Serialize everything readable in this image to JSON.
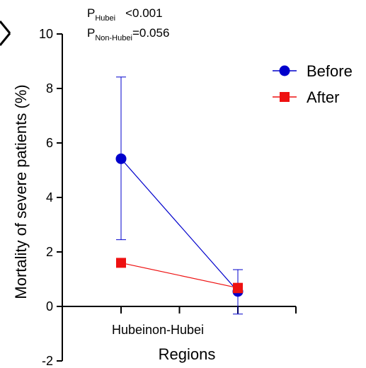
{
  "chart_data": {
    "type": "line",
    "categories": [
      "Hubei",
      "Non-Hubei"
    ],
    "category_labels_text": "Hubeinon-Hubei",
    "xlabel": "Regions",
    "ylabel": "Mortality of severe patients (%)",
    "ylim": [
      -2,
      10
    ],
    "yticks": [
      -2,
      0,
      2,
      4,
      6,
      8,
      10
    ],
    "ytick_labels": [
      "-2",
      "0",
      "2",
      "4",
      "6",
      "8",
      "10"
    ],
    "legend_position": "top-right",
    "grid": false,
    "series": [
      {
        "name": "Before",
        "color": "#0000cc",
        "marker": "circle",
        "values": [
          5.42,
          0.55
        ],
        "error_low": [
          2.45,
          -0.28
        ],
        "error_high": [
          8.42,
          1.35
        ]
      },
      {
        "name": "After",
        "color": "#ee1111",
        "marker": "square",
        "values": [
          1.6,
          0.68
        ],
        "error_low": [
          1.6,
          0.5
        ],
        "error_high": [
          1.6,
          0.85
        ]
      }
    ],
    "annotations": {
      "p_hubei_main": "P",
      "p_hubei_sub": "Hubei",
      "p_hubei_value": "<0.001",
      "p_nonhubei_main": "P",
      "p_nonhubei_sub": "Non-Hubei",
      "p_nonhubei_value": "=0.056"
    }
  }
}
